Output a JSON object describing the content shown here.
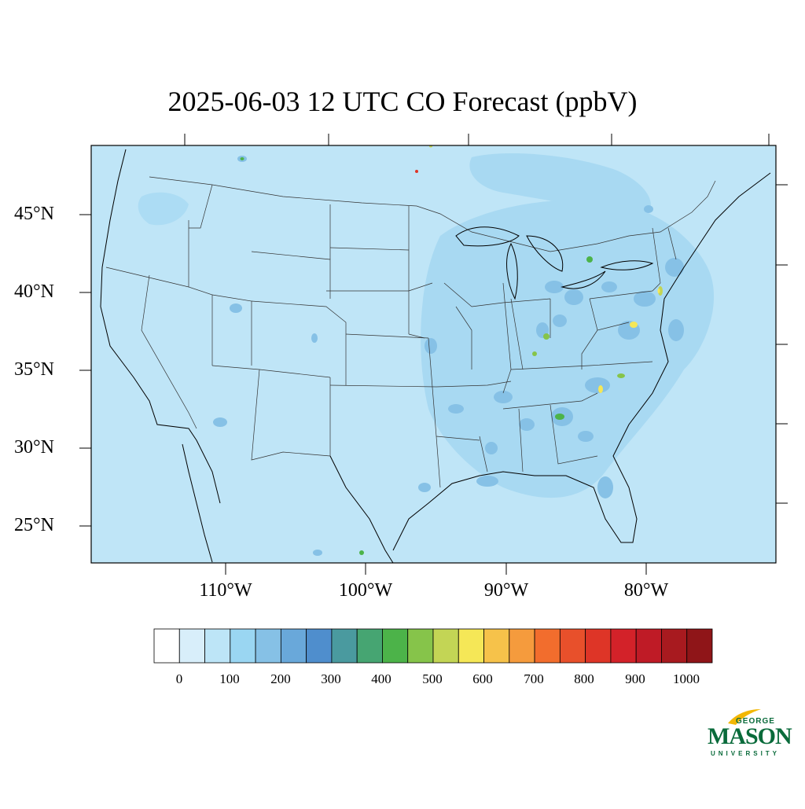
{
  "title": "2025-06-03 12 UTC CO Forecast (ppbV)",
  "axes": {
    "lat_labels": [
      "45°N",
      "40°N",
      "35°N",
      "30°N",
      "25°N"
    ],
    "lon_labels": [
      "110°W",
      "100°W",
      "90°W",
      "80°W"
    ]
  },
  "colorbar": {
    "labels": [
      "0",
      "100",
      "200",
      "300",
      "400",
      "500",
      "600",
      "700",
      "800",
      "900",
      "1000"
    ],
    "colors": [
      "#ffffff",
      "#d8eefa",
      "#bde5f7",
      "#9ad6f2",
      "#86c1e6",
      "#69a8da",
      "#4f8ecd",
      "#4a9a9f",
      "#46a572",
      "#4cb349",
      "#86c44a",
      "#c3d555",
      "#f5e757",
      "#f6c24a",
      "#f59b3d",
      "#f26d2d",
      "#e8502b",
      "#de3527",
      "#d32229",
      "#bf1b26",
      "#a81a1f",
      "#8f1518"
    ]
  },
  "colors": {
    "background_field": "#bfe5f7",
    "medium_field": "#9dd3ef",
    "hotspot_blue": "#6ca9d6",
    "hotspot_green": "#4cb349",
    "hotspot_yellow": "#f5e757",
    "hotspot_red": "#de3527"
  },
  "logo": {
    "line1": "GEORGE",
    "line2": "MASON",
    "line3": "UNIVERSITY"
  }
}
